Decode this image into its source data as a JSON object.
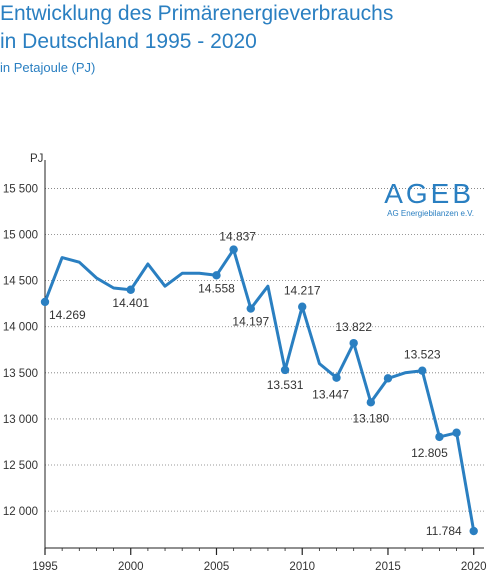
{
  "chart_data": {
    "type": "line",
    "title_line1": "Entwicklung des Primärenergieverbrauchs",
    "title_line2": "in Deutschland 1995 - 2020",
    "subtitle": "in Petajoule (PJ)",
    "ylabel": "PJ",
    "xlabel": "",
    "ylim": [
      11600,
      15700
    ],
    "xlim": [
      1995,
      2020.6
    ],
    "yticks": [
      12000,
      12500,
      13000,
      13500,
      14000,
      14500,
      15000,
      15500
    ],
    "ytick_labels": [
      "12 000",
      "12 500",
      "13 000",
      "13 500",
      "14 000",
      "14 500",
      "15 000",
      "15 500"
    ],
    "xticks": [
      1995,
      2000,
      2005,
      2010,
      2015,
      2020
    ],
    "xtick_labels": [
      "1995",
      "2000",
      "2005",
      "2010",
      "2015",
      "2020"
    ],
    "grid": "horizontal dotted",
    "line_color": "#2a7fc1",
    "x": [
      1995,
      1996,
      1997,
      1998,
      1999,
      2000,
      2001,
      2002,
      2003,
      2004,
      2005,
      2006,
      2007,
      2008,
      2009,
      2010,
      2011,
      2012,
      2013,
      2014,
      2015,
      2016,
      2017,
      2018,
      2019,
      2020
    ],
    "values": [
      14269,
      14750,
      14700,
      14530,
      14420,
      14401,
      14680,
      14440,
      14580,
      14580,
      14558,
      14837,
      14197,
      14440,
      13531,
      14217,
      13600,
      13447,
      13822,
      13180,
      13440,
      13500,
      13523,
      12805,
      12850,
      11784
    ],
    "markers": [
      1995,
      2000,
      2005,
      2006,
      2007,
      2009,
      2010,
      2012,
      2013,
      2014,
      2015,
      2017,
      2018,
      2019,
      2020
    ],
    "data_labels": [
      {
        "x": 1995,
        "text": "14.269"
      },
      {
        "x": 2000,
        "text": "14.401"
      },
      {
        "x": 2005,
        "text": "14.558"
      },
      {
        "x": 2006,
        "text": "14.837"
      },
      {
        "x": 2007,
        "text": "14.197"
      },
      {
        "x": 2009,
        "text": "13.531"
      },
      {
        "x": 2010,
        "text": "14.217"
      },
      {
        "x": 2012,
        "text": "13.447"
      },
      {
        "x": 2013,
        "text": "13.822"
      },
      {
        "x": 2014,
        "text": "13.180"
      },
      {
        "x": 2017,
        "text": "13.523"
      },
      {
        "x": 2018,
        "text": "12.805"
      },
      {
        "x": 2020,
        "text": "11.784"
      }
    ],
    "logo": {
      "text": "AGEB",
      "subtext": "AG Energiebilanzen e.V."
    }
  }
}
